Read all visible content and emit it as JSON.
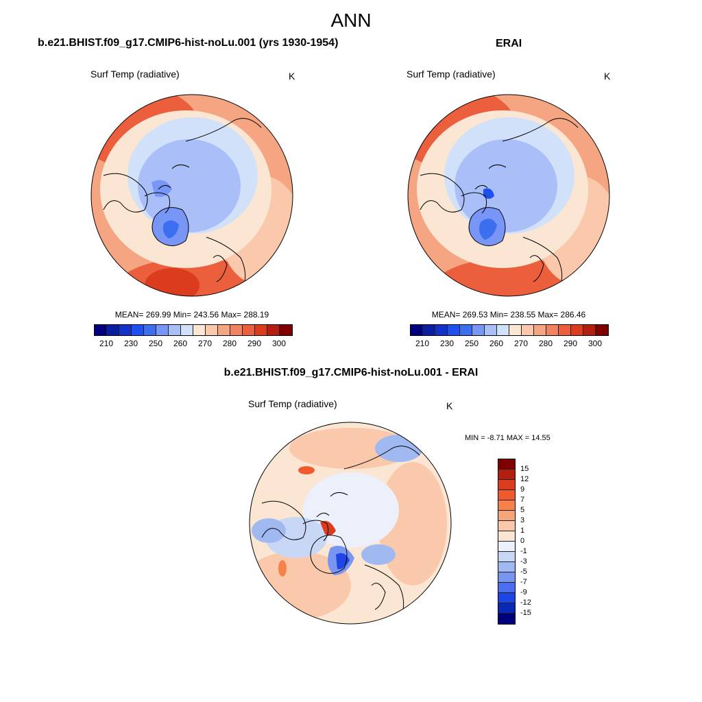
{
  "title": "ANN",
  "panels": {
    "model": {
      "heading": "b.e21.BHIST.f09_g17.CMIP6-hist-noLu.001 (yrs 1930-1954)",
      "variable": "Surf Temp (radiative)",
      "units": "K",
      "stats": "MEAN= 269.99  Min= 243.56  Max= 288.19"
    },
    "obs": {
      "heading": "ERAI",
      "variable": "Surf Temp (radiative)",
      "units": "K",
      "stats": "MEAN= 269.53  Min= 238.55  Max= 286.46"
    },
    "diff": {
      "heading": "b.e21.BHIST.f09_g17.CMIP6-hist-noLu.001 - ERAI",
      "variable": "Surf Temp (radiative)",
      "units": "K",
      "stats": "MIN =  -8.71 MAX =  14.55"
    }
  },
  "colorbars": {
    "absolute": {
      "ticks": [
        "210",
        "230",
        "250",
        "260",
        "270",
        "280",
        "290",
        "300"
      ],
      "colors": [
        "#00007f",
        "#0a1ea0",
        "#1432c8",
        "#1e50f0",
        "#3c6ef0",
        "#7896f5",
        "#aabef8",
        "#d2e1fa",
        "#fae6d2",
        "#fac8aa",
        "#f5a582",
        "#f0825f",
        "#eb5f3c",
        "#dc3c1e",
        "#b41e0f",
        "#7f0000"
      ]
    },
    "difference": {
      "levels": [
        "15",
        "12",
        "9",
        "7",
        "5",
        "3",
        "1",
        "0",
        "-1",
        "-3",
        "-5",
        "-7",
        "-9",
        "-12",
        "-15"
      ],
      "colors": [
        "#7f0000",
        "#b41e0f",
        "#dc3c1e",
        "#f05a2d",
        "#f5824b",
        "#f5a578",
        "#fac8aa",
        "#fae6d2",
        "#ebf0fa",
        "#c8d7f5",
        "#a0b9f0",
        "#7896f0",
        "#4b6ef0",
        "#1e46e6",
        "#0a28b4",
        "#00007f"
      ]
    }
  }
}
